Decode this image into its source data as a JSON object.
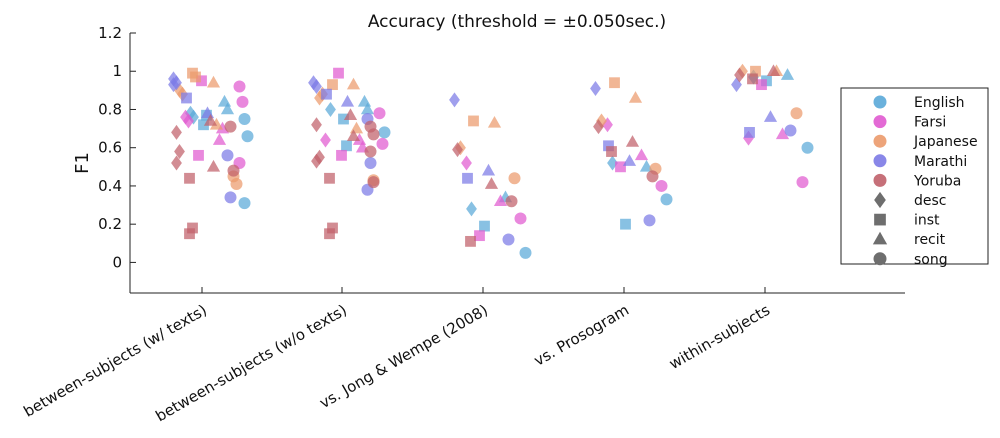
{
  "chart_data": {
    "type": "scatter",
    "title": "Accuracy (threshold = ±0.050sec.)",
    "ylabel": "F1",
    "xlabel": "",
    "ylim": [
      -0.16,
      1.2
    ],
    "yticks": [
      "0",
      "0.2",
      "0.4",
      "0.6",
      "0.8",
      "1",
      "1.2"
    ],
    "categories": [
      "between-subjects (w/ texts)",
      "between-subjects (w/o texts)",
      "vs. Jong & Wempe (2008)",
      "vs. Prosogram",
      "within-subjects"
    ],
    "grid": false,
    "legend_position": "right",
    "language_colors": {
      "English": "#5aa9d8",
      "Farsi": "#e05ad0",
      "Japanese": "#eb9a6c",
      "Marathi": "#7c7ae6",
      "Yoruba": "#c0606a"
    },
    "style_markers": {
      "desc": "diamond",
      "inst": "square",
      "recit": "triangle",
      "song": "circle"
    },
    "legend": {
      "languages": [
        "English",
        "Farsi",
        "Japanese",
        "Marathi",
        "Yoruba"
      ],
      "styles": [
        "desc",
        "inst",
        "recit",
        "song"
      ]
    },
    "series": [
      {
        "category": "between-subjects (w/ texts)",
        "language": "English",
        "style": "desc",
        "values": [
          0.78,
          0.76
        ]
      },
      {
        "category": "between-subjects (w/ texts)",
        "language": "English",
        "style": "inst",
        "values": [
          0.72,
          0.77
        ]
      },
      {
        "category": "between-subjects (w/ texts)",
        "language": "English",
        "style": "recit",
        "values": [
          0.84,
          0.8
        ]
      },
      {
        "category": "between-subjects (w/ texts)",
        "language": "English",
        "style": "song",
        "values": [
          0.75,
          0.66,
          0.31
        ]
      },
      {
        "category": "between-subjects (w/ texts)",
        "language": "Farsi",
        "style": "desc",
        "values": [
          0.76,
          0.74
        ]
      },
      {
        "category": "between-subjects (w/ texts)",
        "language": "Farsi",
        "style": "inst",
        "values": [
          0.56,
          0.95
        ]
      },
      {
        "category": "between-subjects (w/ texts)",
        "language": "Farsi",
        "style": "recit",
        "values": [
          0.64,
          0.7
        ]
      },
      {
        "category": "between-subjects (w/ texts)",
        "language": "Farsi",
        "style": "song",
        "values": [
          0.92,
          0.84,
          0.52
        ]
      },
      {
        "category": "between-subjects (w/ texts)",
        "language": "Japanese",
        "style": "desc",
        "values": [
          0.9,
          0.88
        ]
      },
      {
        "category": "between-subjects (w/ texts)",
        "language": "Japanese",
        "style": "inst",
        "values": [
          0.99,
          0.97
        ]
      },
      {
        "category": "between-subjects (w/ texts)",
        "language": "Japanese",
        "style": "recit",
        "values": [
          0.94,
          0.72
        ]
      },
      {
        "category": "between-subjects (w/ texts)",
        "language": "Japanese",
        "style": "song",
        "values": [
          0.45,
          0.41
        ]
      },
      {
        "category": "between-subjects (w/ texts)",
        "language": "Marathi",
        "style": "desc",
        "values": [
          0.93
        ]
      },
      {
        "category": "between-subjects (w/ texts)",
        "language": "Marathi",
        "style": "inst",
        "values": [
          0.86
        ]
      },
      {
        "category": "between-subjects (w/ texts)",
        "language": "Marathi",
        "style": "recit",
        "values": [
          0.78
        ]
      },
      {
        "category": "between-subjects (w/ texts)",
        "language": "Marathi",
        "style": "song",
        "values": [
          0.56,
          0.34
        ]
      },
      {
        "category": "between-subjects (w/ texts)",
        "language": "Yoruba",
        "style": "desc",
        "values": [
          0.68,
          0.58,
          0.52
        ]
      },
      {
        "category": "between-subjects (w/ texts)",
        "language": "Yoruba",
        "style": "inst",
        "values": [
          0.44,
          0.18,
          0.15
        ]
      },
      {
        "category": "between-subjects (w/ texts)",
        "language": "Yoruba",
        "style": "recit",
        "values": [
          0.74,
          0.5
        ]
      },
      {
        "category": "between-subjects (w/ texts)",
        "language": "Yoruba",
        "style": "song",
        "values": [
          0.71,
          0.48
        ]
      },
      {
        "category": "between-subjects (w/ texts)",
        "language": "Marathi",
        "style": "desc",
        "values": [
          0.96,
          0.94
        ]
      },
      {
        "category": "between-subjects (w/o texts)",
        "language": "English",
        "style": "desc",
        "values": [
          0.8
        ]
      },
      {
        "category": "between-subjects (w/o texts)",
        "language": "English",
        "style": "inst",
        "values": [
          0.75,
          0.61
        ]
      },
      {
        "category": "between-subjects (w/o texts)",
        "language": "English",
        "style": "recit",
        "values": [
          0.84,
          0.8
        ]
      },
      {
        "category": "between-subjects (w/o texts)",
        "language": "English",
        "style": "song",
        "values": [
          0.68
        ]
      },
      {
        "category": "between-subjects (w/o texts)",
        "language": "Farsi",
        "style": "desc",
        "values": [
          0.64
        ]
      },
      {
        "category": "between-subjects (w/o texts)",
        "language": "Farsi",
        "style": "inst",
        "values": [
          0.99,
          0.56
        ]
      },
      {
        "category": "between-subjects (w/o texts)",
        "language": "Farsi",
        "style": "recit",
        "values": [
          0.64,
          0.6
        ]
      },
      {
        "category": "between-subjects (w/o texts)",
        "language": "Farsi",
        "style": "song",
        "values": [
          0.78,
          0.62
        ]
      },
      {
        "category": "between-subjects (w/o texts)",
        "language": "Japanese",
        "style": "desc",
        "values": [
          0.86,
          0.88
        ]
      },
      {
        "category": "between-subjects (w/o texts)",
        "language": "Japanese",
        "style": "inst",
        "values": [
          0.93
        ]
      },
      {
        "category": "between-subjects (w/o texts)",
        "language": "Japanese",
        "style": "recit",
        "values": [
          0.93,
          0.7
        ]
      },
      {
        "category": "between-subjects (w/o texts)",
        "language": "Japanese",
        "style": "song",
        "values": [
          0.43
        ]
      },
      {
        "category": "between-subjects (w/o texts)",
        "language": "Marathi",
        "style": "desc",
        "values": [
          0.94,
          0.92
        ]
      },
      {
        "category": "between-subjects (w/o texts)",
        "language": "Marathi",
        "style": "inst",
        "values": [
          0.88
        ]
      },
      {
        "category": "between-subjects (w/o texts)",
        "language": "Marathi",
        "style": "recit",
        "values": [
          0.84
        ]
      },
      {
        "category": "between-subjects (w/o texts)",
        "language": "Marathi",
        "style": "song",
        "values": [
          0.75,
          0.52,
          0.38
        ]
      },
      {
        "category": "between-subjects (w/o texts)",
        "language": "Yoruba",
        "style": "desc",
        "values": [
          0.72,
          0.55,
          0.53
        ]
      },
      {
        "category": "between-subjects (w/o texts)",
        "language": "Yoruba",
        "style": "inst",
        "values": [
          0.44,
          0.18,
          0.15
        ]
      },
      {
        "category": "between-subjects (w/o texts)",
        "language": "Yoruba",
        "style": "recit",
        "values": [
          0.77,
          0.66
        ]
      },
      {
        "category": "between-subjects (w/o texts)",
        "language": "Yoruba",
        "style": "song",
        "values": [
          0.71,
          0.67,
          0.58,
          0.42
        ]
      },
      {
        "category": "vs. Jong & Wempe (2008)",
        "language": "English",
        "style": "desc",
        "values": [
          0.28
        ]
      },
      {
        "category": "vs. Jong & Wempe (2008)",
        "language": "English",
        "style": "inst",
        "values": [
          0.19
        ]
      },
      {
        "category": "vs. Jong & Wempe (2008)",
        "language": "English",
        "style": "recit",
        "values": [
          0.34
        ]
      },
      {
        "category": "vs. Jong & Wempe (2008)",
        "language": "English",
        "style": "song",
        "values": [
          0.05
        ]
      },
      {
        "category": "vs. Jong & Wempe (2008)",
        "language": "Farsi",
        "style": "desc",
        "values": [
          0.52
        ]
      },
      {
        "category": "vs. Jong & Wempe (2008)",
        "language": "Farsi",
        "style": "inst",
        "values": [
          0.14
        ]
      },
      {
        "category": "vs. Jong & Wempe (2008)",
        "language": "Farsi",
        "style": "recit",
        "values": [
          0.32
        ]
      },
      {
        "category": "vs. Jong & Wempe (2008)",
        "language": "Farsi",
        "style": "song",
        "values": [
          0.23
        ]
      },
      {
        "category": "vs. Jong & Wempe (2008)",
        "language": "Japanese",
        "style": "desc",
        "values": [
          0.6
        ]
      },
      {
        "category": "vs. Jong & Wempe (2008)",
        "language": "Japanese",
        "style": "inst",
        "values": [
          0.74
        ]
      },
      {
        "category": "vs. Jong & Wempe (2008)",
        "language": "Japanese",
        "style": "recit",
        "values": [
          0.73
        ]
      },
      {
        "category": "vs. Jong & Wempe (2008)",
        "language": "Japanese",
        "style": "song",
        "values": [
          0.44
        ]
      },
      {
        "category": "vs. Jong & Wempe (2008)",
        "language": "Marathi",
        "style": "desc",
        "values": [
          0.85
        ]
      },
      {
        "category": "vs. Jong & Wempe (2008)",
        "language": "Marathi",
        "style": "inst",
        "values": [
          0.44
        ]
      },
      {
        "category": "vs. Jong & Wempe (2008)",
        "language": "Marathi",
        "style": "recit",
        "values": [
          0.48
        ]
      },
      {
        "category": "vs. Jong & Wempe (2008)",
        "language": "Marathi",
        "style": "song",
        "values": [
          0.12
        ]
      },
      {
        "category": "vs. Jong & Wempe (2008)",
        "language": "Yoruba",
        "style": "desc",
        "values": [
          0.59
        ]
      },
      {
        "category": "vs. Jong & Wempe (2008)",
        "language": "Yoruba",
        "style": "inst",
        "values": [
          0.11
        ]
      },
      {
        "category": "vs. Jong & Wempe (2008)",
        "language": "Yoruba",
        "style": "recit",
        "values": [
          0.41
        ]
      },
      {
        "category": "vs. Jong & Wempe (2008)",
        "language": "Yoruba",
        "style": "song",
        "values": [
          0.32
        ]
      },
      {
        "category": "vs. Prosogram",
        "language": "English",
        "style": "desc",
        "values": [
          0.52
        ]
      },
      {
        "category": "vs. Prosogram",
        "language": "English",
        "style": "inst",
        "values": [
          0.2
        ]
      },
      {
        "category": "vs. Prosogram",
        "language": "English",
        "style": "recit",
        "values": [
          0.5
        ]
      },
      {
        "category": "vs. Prosogram",
        "language": "English",
        "style": "song",
        "values": [
          0.33
        ]
      },
      {
        "category": "vs. Prosogram",
        "language": "Farsi",
        "style": "desc",
        "values": [
          0.72
        ]
      },
      {
        "category": "vs. Prosogram",
        "language": "Farsi",
        "style": "inst",
        "values": [
          0.5
        ]
      },
      {
        "category": "vs. Prosogram",
        "language": "Farsi",
        "style": "recit",
        "values": [
          0.56
        ]
      },
      {
        "category": "vs. Prosogram",
        "language": "Farsi",
        "style": "song",
        "values": [
          0.4
        ]
      },
      {
        "category": "vs. Prosogram",
        "language": "Japanese",
        "style": "desc",
        "values": [
          0.74
        ]
      },
      {
        "category": "vs. Prosogram",
        "language": "Japanese",
        "style": "inst",
        "values": [
          0.94
        ]
      },
      {
        "category": "vs. Prosogram",
        "language": "Japanese",
        "style": "recit",
        "values": [
          0.86
        ]
      },
      {
        "category": "vs. Prosogram",
        "language": "Japanese",
        "style": "song",
        "values": [
          0.49
        ]
      },
      {
        "category": "vs. Prosogram",
        "language": "Marathi",
        "style": "desc",
        "values": [
          0.91
        ]
      },
      {
        "category": "vs. Prosogram",
        "language": "Marathi",
        "style": "inst",
        "values": [
          0.61
        ]
      },
      {
        "category": "vs. Prosogram",
        "language": "Marathi",
        "style": "recit",
        "values": [
          0.53
        ]
      },
      {
        "category": "vs. Prosogram",
        "language": "Marathi",
        "style": "song",
        "values": [
          0.22
        ]
      },
      {
        "category": "vs. Prosogram",
        "language": "Yoruba",
        "style": "desc",
        "values": [
          0.71
        ]
      },
      {
        "category": "vs. Prosogram",
        "language": "Yoruba",
        "style": "inst",
        "values": [
          0.58
        ]
      },
      {
        "category": "vs. Prosogram",
        "language": "Yoruba",
        "style": "recit",
        "values": [
          0.63
        ]
      },
      {
        "category": "vs. Prosogram",
        "language": "Yoruba",
        "style": "song",
        "values": [
          0.45
        ]
      },
      {
        "category": "within-subjects",
        "language": "English",
        "style": "desc",
        "values": [
          0.97
        ]
      },
      {
        "category": "within-subjects",
        "language": "English",
        "style": "inst",
        "values": [
          0.95
        ]
      },
      {
        "category": "within-subjects",
        "language": "English",
        "style": "recit",
        "values": [
          0.98
        ]
      },
      {
        "category": "within-subjects",
        "language": "English",
        "style": "song",
        "values": [
          0.6
        ]
      },
      {
        "category": "within-subjects",
        "language": "Farsi",
        "style": "desc",
        "values": [
          0.65
        ]
      },
      {
        "category": "within-subjects",
        "language": "Farsi",
        "style": "inst",
        "values": [
          0.93
        ]
      },
      {
        "category": "within-subjects",
        "language": "Farsi",
        "style": "recit",
        "values": [
          0.67
        ]
      },
      {
        "category": "within-subjects",
        "language": "Farsi",
        "style": "song",
        "values": [
          0.42
        ]
      },
      {
        "category": "within-subjects",
        "language": "Japanese",
        "style": "desc",
        "values": [
          1.0
        ]
      },
      {
        "category": "within-subjects",
        "language": "Japanese",
        "style": "inst",
        "values": [
          1.0
        ]
      },
      {
        "category": "within-subjects",
        "language": "Japanese",
        "style": "recit",
        "values": [
          1.0
        ]
      },
      {
        "category": "within-subjects",
        "language": "Japanese",
        "style": "song",
        "values": [
          0.78
        ]
      },
      {
        "category": "within-subjects",
        "language": "Marathi",
        "style": "desc",
        "values": [
          0.93
        ]
      },
      {
        "category": "within-subjects",
        "language": "Marathi",
        "style": "inst",
        "values": [
          0.68
        ]
      },
      {
        "category": "within-subjects",
        "language": "Marathi",
        "style": "recit",
        "values": [
          0.76
        ]
      },
      {
        "category": "within-subjects",
        "language": "Marathi",
        "style": "song",
        "values": [
          0.69
        ]
      },
      {
        "category": "within-subjects",
        "language": "Yoruba",
        "style": "desc",
        "values": [
          0.98
        ]
      },
      {
        "category": "within-subjects",
        "language": "Yoruba",
        "style": "inst",
        "values": [
          0.96
        ]
      },
      {
        "category": "within-subjects",
        "language": "Yoruba",
        "style": "recit",
        "values": [
          1.0
        ]
      }
    ]
  }
}
